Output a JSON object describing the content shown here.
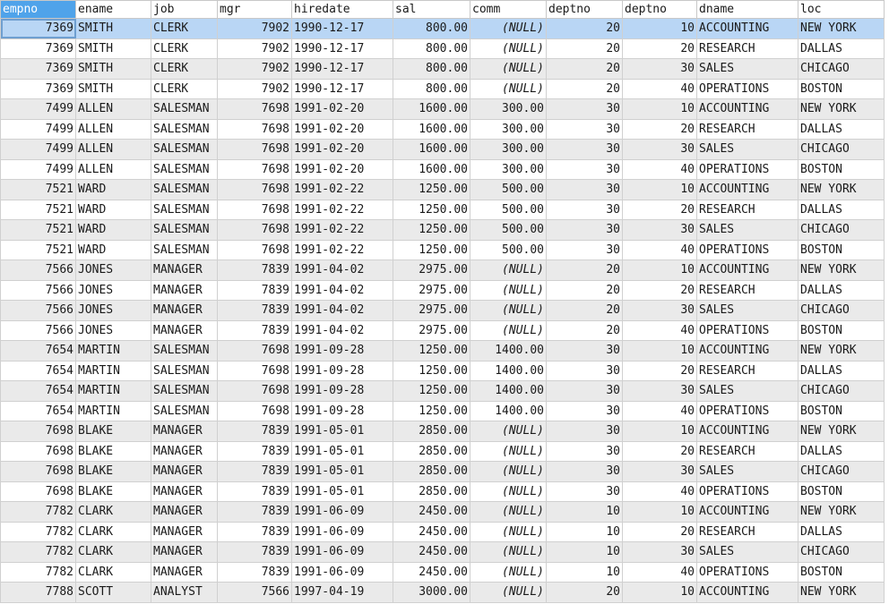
{
  "grid": {
    "columns": [
      "empno",
      "ename",
      "job",
      "mgr",
      "hiredate",
      "sal",
      "comm",
      "deptno",
      "deptno",
      "dname",
      "loc"
    ],
    "selected_row": 0,
    "accent": "#4fa3ea",
    "rows": [
      [
        "7369",
        "SMITH",
        "CLERK",
        "7902",
        "1990-12-17",
        "800.00",
        "(NULL)",
        "20",
        "10",
        "ACCOUNTING",
        "NEW YORK"
      ],
      [
        "7369",
        "SMITH",
        "CLERK",
        "7902",
        "1990-12-17",
        "800.00",
        "(NULL)",
        "20",
        "20",
        "RESEARCH",
        "DALLAS"
      ],
      [
        "7369",
        "SMITH",
        "CLERK",
        "7902",
        "1990-12-17",
        "800.00",
        "(NULL)",
        "20",
        "30",
        "SALES",
        "CHICAGO"
      ],
      [
        "7369",
        "SMITH",
        "CLERK",
        "7902",
        "1990-12-17",
        "800.00",
        "(NULL)",
        "20",
        "40",
        "OPERATIONS",
        "BOSTON"
      ],
      [
        "7499",
        "ALLEN",
        "SALESMAN",
        "7698",
        "1991-02-20",
        "1600.00",
        "300.00",
        "30",
        "10",
        "ACCOUNTING",
        "NEW YORK"
      ],
      [
        "7499",
        "ALLEN",
        "SALESMAN",
        "7698",
        "1991-02-20",
        "1600.00",
        "300.00",
        "30",
        "20",
        "RESEARCH",
        "DALLAS"
      ],
      [
        "7499",
        "ALLEN",
        "SALESMAN",
        "7698",
        "1991-02-20",
        "1600.00",
        "300.00",
        "30",
        "30",
        "SALES",
        "CHICAGO"
      ],
      [
        "7499",
        "ALLEN",
        "SALESMAN",
        "7698",
        "1991-02-20",
        "1600.00",
        "300.00",
        "30",
        "40",
        "OPERATIONS",
        "BOSTON"
      ],
      [
        "7521",
        "WARD",
        "SALESMAN",
        "7698",
        "1991-02-22",
        "1250.00",
        "500.00",
        "30",
        "10",
        "ACCOUNTING",
        "NEW YORK"
      ],
      [
        "7521",
        "WARD",
        "SALESMAN",
        "7698",
        "1991-02-22",
        "1250.00",
        "500.00",
        "30",
        "20",
        "RESEARCH",
        "DALLAS"
      ],
      [
        "7521",
        "WARD",
        "SALESMAN",
        "7698",
        "1991-02-22",
        "1250.00",
        "500.00",
        "30",
        "30",
        "SALES",
        "CHICAGO"
      ],
      [
        "7521",
        "WARD",
        "SALESMAN",
        "7698",
        "1991-02-22",
        "1250.00",
        "500.00",
        "30",
        "40",
        "OPERATIONS",
        "BOSTON"
      ],
      [
        "7566",
        "JONES",
        "MANAGER",
        "7839",
        "1991-04-02",
        "2975.00",
        "(NULL)",
        "20",
        "10",
        "ACCOUNTING",
        "NEW YORK"
      ],
      [
        "7566",
        "JONES",
        "MANAGER",
        "7839",
        "1991-04-02",
        "2975.00",
        "(NULL)",
        "20",
        "20",
        "RESEARCH",
        "DALLAS"
      ],
      [
        "7566",
        "JONES",
        "MANAGER",
        "7839",
        "1991-04-02",
        "2975.00",
        "(NULL)",
        "20",
        "30",
        "SALES",
        "CHICAGO"
      ],
      [
        "7566",
        "JONES",
        "MANAGER",
        "7839",
        "1991-04-02",
        "2975.00",
        "(NULL)",
        "20",
        "40",
        "OPERATIONS",
        "BOSTON"
      ],
      [
        "7654",
        "MARTIN",
        "SALESMAN",
        "7698",
        "1991-09-28",
        "1250.00",
        "1400.00",
        "30",
        "10",
        "ACCOUNTING",
        "NEW YORK"
      ],
      [
        "7654",
        "MARTIN",
        "SALESMAN",
        "7698",
        "1991-09-28",
        "1250.00",
        "1400.00",
        "30",
        "20",
        "RESEARCH",
        "DALLAS"
      ],
      [
        "7654",
        "MARTIN",
        "SALESMAN",
        "7698",
        "1991-09-28",
        "1250.00",
        "1400.00",
        "30",
        "30",
        "SALES",
        "CHICAGO"
      ],
      [
        "7654",
        "MARTIN",
        "SALESMAN",
        "7698",
        "1991-09-28",
        "1250.00",
        "1400.00",
        "30",
        "40",
        "OPERATIONS",
        "BOSTON"
      ],
      [
        "7698",
        "BLAKE",
        "MANAGER",
        "7839",
        "1991-05-01",
        "2850.00",
        "(NULL)",
        "30",
        "10",
        "ACCOUNTING",
        "NEW YORK"
      ],
      [
        "7698",
        "BLAKE",
        "MANAGER",
        "7839",
        "1991-05-01",
        "2850.00",
        "(NULL)",
        "30",
        "20",
        "RESEARCH",
        "DALLAS"
      ],
      [
        "7698",
        "BLAKE",
        "MANAGER",
        "7839",
        "1991-05-01",
        "2850.00",
        "(NULL)",
        "30",
        "30",
        "SALES",
        "CHICAGO"
      ],
      [
        "7698",
        "BLAKE",
        "MANAGER",
        "7839",
        "1991-05-01",
        "2850.00",
        "(NULL)",
        "30",
        "40",
        "OPERATIONS",
        "BOSTON"
      ],
      [
        "7782",
        "CLARK",
        "MANAGER",
        "7839",
        "1991-06-09",
        "2450.00",
        "(NULL)",
        "10",
        "10",
        "ACCOUNTING",
        "NEW YORK"
      ],
      [
        "7782",
        "CLARK",
        "MANAGER",
        "7839",
        "1991-06-09",
        "2450.00",
        "(NULL)",
        "10",
        "20",
        "RESEARCH",
        "DALLAS"
      ],
      [
        "7782",
        "CLARK",
        "MANAGER",
        "7839",
        "1991-06-09",
        "2450.00",
        "(NULL)",
        "10",
        "30",
        "SALES",
        "CHICAGO"
      ],
      [
        "7782",
        "CLARK",
        "MANAGER",
        "7839",
        "1991-06-09",
        "2450.00",
        "(NULL)",
        "10",
        "40",
        "OPERATIONS",
        "BOSTON"
      ],
      [
        "7788",
        "SCOTT",
        "ANALYST",
        "7566",
        "1997-04-19",
        "3000.00",
        "(NULL)",
        "20",
        "10",
        "ACCOUNTING",
        "NEW YORK"
      ]
    ]
  }
}
